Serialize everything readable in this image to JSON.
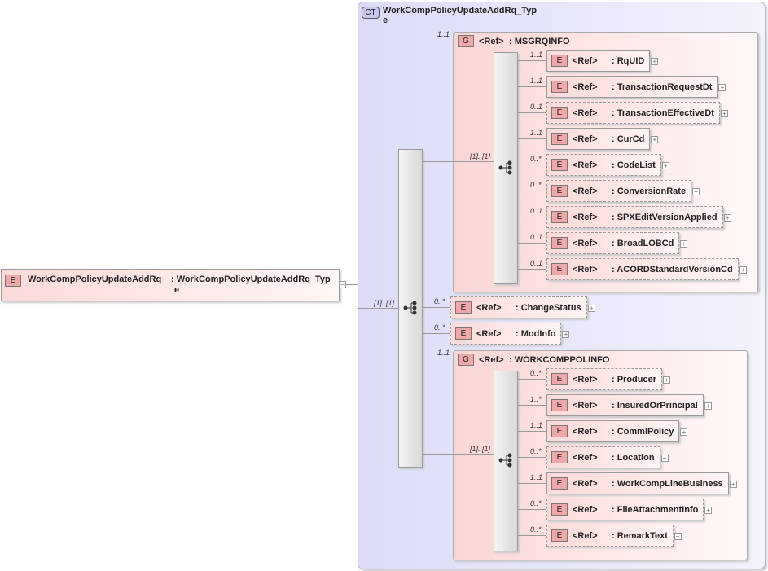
{
  "root": {
    "badge": "E",
    "name": "WorkCompPolicyUpdateAddRq",
    "type_line1": ": WorkCompPolicyUpdateAddRq_Typ",
    "type_line2": "e",
    "expander": "−"
  },
  "complex_type": {
    "badge": "CT",
    "name_line1": "WorkCompPolicyUpdateAddRq_Typ",
    "name_line2": "e"
  },
  "main_sequence": {
    "cardinality": "[1]..[1]"
  },
  "ref_label": "<Ref>",
  "groups": [
    {
      "badge": "G",
      "ref": "<Ref>",
      "name": ": MSGRQINFO",
      "cardinality": "1..1",
      "seq_cardinality": "[1]..[1]",
      "children": [
        {
          "name": ": RqUID",
          "cardinality": "1..1",
          "optional": false
        },
        {
          "name": ": TransactionRequestDt",
          "cardinality": "1..1",
          "optional": false
        },
        {
          "name": ": TransactionEffectiveDt",
          "cardinality": "0..1",
          "optional": true
        },
        {
          "name": ": CurCd",
          "cardinality": "1..1",
          "optional": false
        },
        {
          "name": ": CodeList",
          "cardinality": "0..*",
          "optional": true
        },
        {
          "name": ": ConversionRate",
          "cardinality": "0..*",
          "optional": true
        },
        {
          "name": ": SPXEditVersionApplied",
          "cardinality": "0..1",
          "optional": true
        },
        {
          "name": ": BroadLOBCd",
          "cardinality": "0..1",
          "optional": true
        },
        {
          "name": ": ACORDStandardVersionCd",
          "cardinality": "0..1",
          "optional": true
        }
      ]
    },
    {
      "badge": "G",
      "ref": "<Ref>",
      "name": ": WORKCOMPPOLINFO",
      "cardinality": "1..1",
      "seq_cardinality": "[1]..[1]",
      "children": [
        {
          "name": ": Producer",
          "cardinality": "0..*",
          "optional": true
        },
        {
          "name": ": InsuredOrPrincipal",
          "cardinality": "1..*",
          "optional": false
        },
        {
          "name": ": CommlPolicy",
          "cardinality": "1..1",
          "optional": false
        },
        {
          "name": ": Location",
          "cardinality": "0..*",
          "optional": true
        },
        {
          "name": ": WorkCompLineBusiness",
          "cardinality": "1..1",
          "optional": false
        },
        {
          "name": ": FileAttachmentInfo",
          "cardinality": "0..*",
          "optional": true
        },
        {
          "name": ": RemarkText",
          "cardinality": "0..*",
          "optional": true
        }
      ]
    }
  ],
  "direct_elements": [
    {
      "name": ": ChangeStatus",
      "cardinality": "0..*",
      "optional": true
    },
    {
      "name": ": ModInfo",
      "cardinality": "0..*",
      "optional": true
    }
  ],
  "element_badge": "E",
  "expander": "+"
}
